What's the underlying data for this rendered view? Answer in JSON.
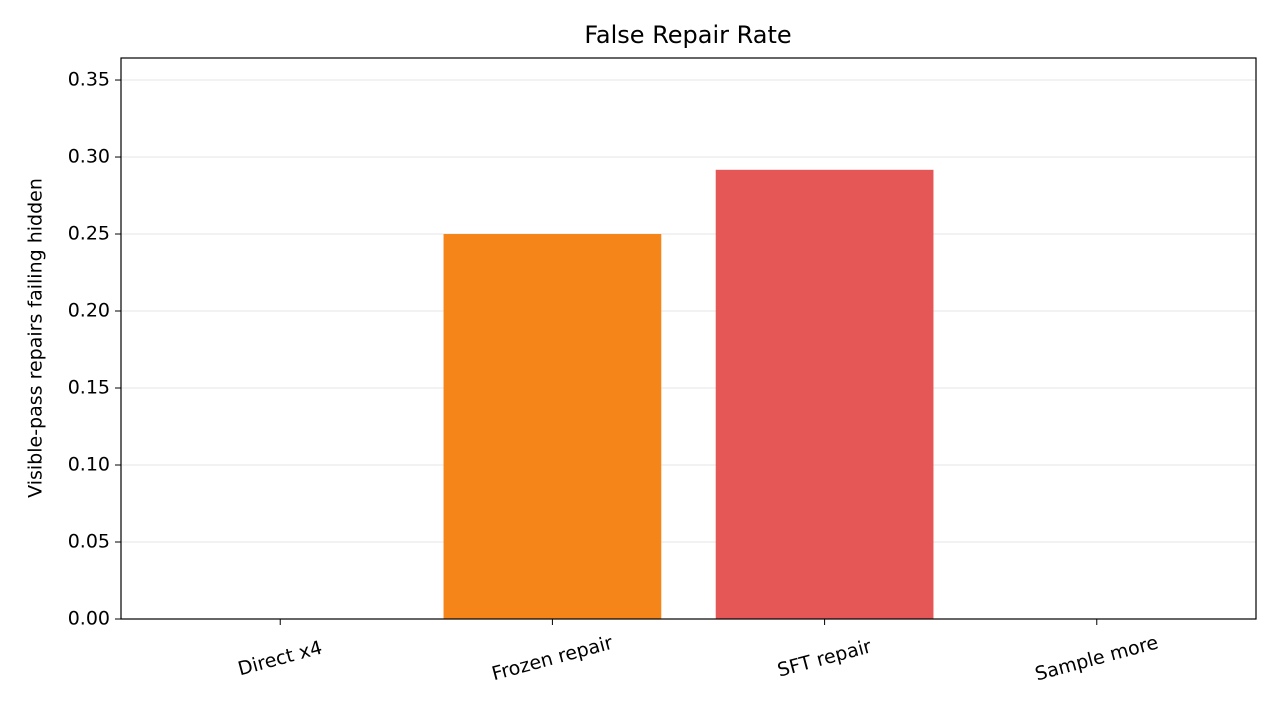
{
  "chart_data": {
    "type": "bar",
    "title": "False Repair Rate",
    "y_label": "Visible-pass repairs failing hidden",
    "categories": [
      "Direct x4",
      "Frozen repair",
      "SFT repair",
      "Sample more"
    ],
    "values": [
      0,
      0.25,
      0.2917,
      0
    ],
    "colors": [
      "#4c78a8",
      "#f58518",
      "#e45756",
      "#72b7b2"
    ],
    "ylim": [
      0,
      0.3643
    ],
    "yticks": [
      {
        "value": 0,
        "label": "0.00"
      },
      {
        "value": 0.05,
        "label": "0.05"
      },
      {
        "value": 0.1,
        "label": "0.10"
      },
      {
        "value": 0.15,
        "label": "0.15"
      },
      {
        "value": 0.2,
        "label": "0.20"
      },
      {
        "value": 0.25,
        "label": "0.25"
      },
      {
        "value": 0.3,
        "label": "0.30"
      },
      {
        "value": 0.35,
        "label": "0.35"
      }
    ],
    "grid": true
  }
}
